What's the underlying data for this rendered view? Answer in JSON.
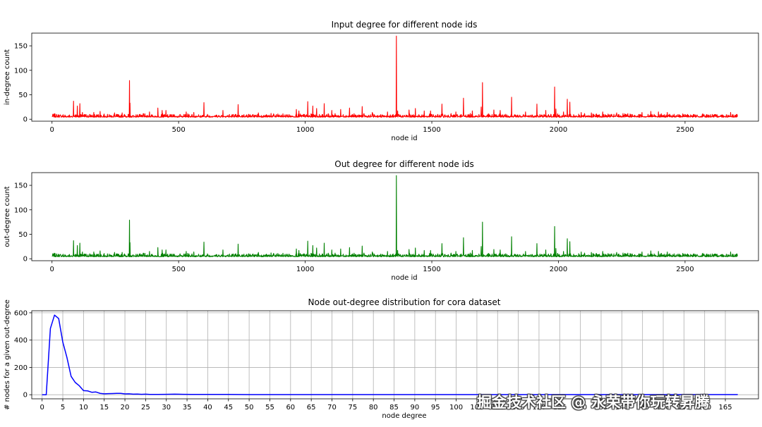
{
  "chart_data": [
    {
      "type": "line",
      "title": "Input degree for different node ids",
      "xlabel": "node id",
      "ylabel": "in-degree count",
      "xlim": [
        -80,
        2790
      ],
      "ylim": [
        -4,
        176
      ],
      "xticks": [
        0,
        500,
        1000,
        1500,
        2000,
        2500
      ],
      "yticks": [
        0,
        50,
        100,
        150
      ],
      "grid": false,
      "color": "#ff0000",
      "baseline_value": 4,
      "n_points": 2708,
      "spikes": [
        {
          "x": 85,
          "y": 37
        },
        {
          "x": 100,
          "y": 27
        },
        {
          "x": 110,
          "y": 32
        },
        {
          "x": 120,
          "y": 14
        },
        {
          "x": 165,
          "y": 14
        },
        {
          "x": 190,
          "y": 16
        },
        {
          "x": 247,
          "y": 13
        },
        {
          "x": 277,
          "y": 13
        },
        {
          "x": 306,
          "y": 79
        },
        {
          "x": 308,
          "y": 33
        },
        {
          "x": 385,
          "y": 15
        },
        {
          "x": 418,
          "y": 23
        },
        {
          "x": 435,
          "y": 18
        },
        {
          "x": 450,
          "y": 18
        },
        {
          "x": 530,
          "y": 15
        },
        {
          "x": 560,
          "y": 14
        },
        {
          "x": 600,
          "y": 34
        },
        {
          "x": 675,
          "y": 18
        },
        {
          "x": 735,
          "y": 30
        },
        {
          "x": 815,
          "y": 13
        },
        {
          "x": 865,
          "y": 12
        },
        {
          "x": 965,
          "y": 20
        },
        {
          "x": 975,
          "y": 17
        },
        {
          "x": 1010,
          "y": 36
        },
        {
          "x": 1030,
          "y": 27
        },
        {
          "x": 1045,
          "y": 22
        },
        {
          "x": 1075,
          "y": 32
        },
        {
          "x": 1105,
          "y": 18
        },
        {
          "x": 1140,
          "y": 20
        },
        {
          "x": 1175,
          "y": 23
        },
        {
          "x": 1225,
          "y": 26
        },
        {
          "x": 1265,
          "y": 14
        },
        {
          "x": 1325,
          "y": 15
        },
        {
          "x": 1360,
          "y": 170
        },
        {
          "x": 1365,
          "y": 17
        },
        {
          "x": 1410,
          "y": 19
        },
        {
          "x": 1435,
          "y": 22
        },
        {
          "x": 1470,
          "y": 17
        },
        {
          "x": 1495,
          "y": 17
        },
        {
          "x": 1540,
          "y": 31
        },
        {
          "x": 1595,
          "y": 15
        },
        {
          "x": 1625,
          "y": 43
        },
        {
          "x": 1660,
          "y": 17
        },
        {
          "x": 1695,
          "y": 25
        },
        {
          "x": 1700,
          "y": 75
        },
        {
          "x": 1745,
          "y": 19
        },
        {
          "x": 1770,
          "y": 18
        },
        {
          "x": 1815,
          "y": 45
        },
        {
          "x": 1870,
          "y": 15
        },
        {
          "x": 1915,
          "y": 31
        },
        {
          "x": 1950,
          "y": 18
        },
        {
          "x": 1985,
          "y": 66
        },
        {
          "x": 1990,
          "y": 21
        },
        {
          "x": 2020,
          "y": 15
        },
        {
          "x": 2035,
          "y": 41
        },
        {
          "x": 2045,
          "y": 35
        },
        {
          "x": 2090,
          "y": 14
        },
        {
          "x": 2130,
          "y": 13
        },
        {
          "x": 2175,
          "y": 15
        },
        {
          "x": 2230,
          "y": 13
        },
        {
          "x": 2330,
          "y": 14
        },
        {
          "x": 2365,
          "y": 16
        },
        {
          "x": 2395,
          "y": 15
        },
        {
          "x": 2430,
          "y": 14
        },
        {
          "x": 2680,
          "y": 14
        }
      ]
    },
    {
      "type": "line",
      "title": "Out degree for different node ids",
      "xlabel": "node id",
      "ylabel": "out-degree count",
      "xlim": [
        -80,
        2790
      ],
      "ylim": [
        -4,
        176
      ],
      "xticks": [
        0,
        500,
        1000,
        1500,
        2000,
        2500
      ],
      "yticks": [
        0,
        50,
        100,
        150
      ],
      "grid": false,
      "color": "#008000",
      "baseline_value": 4,
      "n_points": 2708,
      "spikes": [
        {
          "x": 85,
          "y": 37
        },
        {
          "x": 100,
          "y": 27
        },
        {
          "x": 110,
          "y": 32
        },
        {
          "x": 120,
          "y": 14
        },
        {
          "x": 165,
          "y": 14
        },
        {
          "x": 190,
          "y": 16
        },
        {
          "x": 247,
          "y": 13
        },
        {
          "x": 277,
          "y": 13
        },
        {
          "x": 306,
          "y": 79
        },
        {
          "x": 308,
          "y": 33
        },
        {
          "x": 385,
          "y": 15
        },
        {
          "x": 418,
          "y": 23
        },
        {
          "x": 435,
          "y": 18
        },
        {
          "x": 450,
          "y": 18
        },
        {
          "x": 530,
          "y": 15
        },
        {
          "x": 560,
          "y": 14
        },
        {
          "x": 600,
          "y": 34
        },
        {
          "x": 675,
          "y": 18
        },
        {
          "x": 735,
          "y": 30
        },
        {
          "x": 815,
          "y": 13
        },
        {
          "x": 865,
          "y": 12
        },
        {
          "x": 965,
          "y": 20
        },
        {
          "x": 975,
          "y": 17
        },
        {
          "x": 1010,
          "y": 36
        },
        {
          "x": 1030,
          "y": 27
        },
        {
          "x": 1045,
          "y": 22
        },
        {
          "x": 1075,
          "y": 32
        },
        {
          "x": 1105,
          "y": 18
        },
        {
          "x": 1140,
          "y": 20
        },
        {
          "x": 1175,
          "y": 23
        },
        {
          "x": 1225,
          "y": 26
        },
        {
          "x": 1265,
          "y": 14
        },
        {
          "x": 1325,
          "y": 15
        },
        {
          "x": 1360,
          "y": 170
        },
        {
          "x": 1365,
          "y": 17
        },
        {
          "x": 1410,
          "y": 19
        },
        {
          "x": 1435,
          "y": 22
        },
        {
          "x": 1470,
          "y": 17
        },
        {
          "x": 1495,
          "y": 17
        },
        {
          "x": 1540,
          "y": 31
        },
        {
          "x": 1595,
          "y": 15
        },
        {
          "x": 1625,
          "y": 43
        },
        {
          "x": 1660,
          "y": 17
        },
        {
          "x": 1695,
          "y": 25
        },
        {
          "x": 1700,
          "y": 75
        },
        {
          "x": 1745,
          "y": 19
        },
        {
          "x": 1770,
          "y": 18
        },
        {
          "x": 1815,
          "y": 45
        },
        {
          "x": 1870,
          "y": 15
        },
        {
          "x": 1915,
          "y": 31
        },
        {
          "x": 1950,
          "y": 18
        },
        {
          "x": 1985,
          "y": 66
        },
        {
          "x": 1990,
          "y": 21
        },
        {
          "x": 2020,
          "y": 15
        },
        {
          "x": 2035,
          "y": 41
        },
        {
          "x": 2045,
          "y": 35
        },
        {
          "x": 2090,
          "y": 14
        },
        {
          "x": 2130,
          "y": 13
        },
        {
          "x": 2175,
          "y": 15
        },
        {
          "x": 2230,
          "y": 13
        },
        {
          "x": 2330,
          "y": 14
        },
        {
          "x": 2365,
          "y": 16
        },
        {
          "x": 2395,
          "y": 15
        },
        {
          "x": 2430,
          "y": 14
        },
        {
          "x": 2680,
          "y": 14
        }
      ]
    },
    {
      "type": "line",
      "title": "Node out-degree distribution for cora dataset",
      "xlabel": "node degree",
      "ylabel": "# nodes for a given out-degree",
      "xlim": [
        -2.5,
        173
      ],
      "ylim": [
        -30,
        615
      ],
      "xticks": [
        0,
        5,
        10,
        15,
        20,
        25,
        30,
        35,
        40,
        45,
        50,
        55,
        60,
        65,
        70,
        75,
        80,
        85,
        90,
        95,
        100,
        105,
        110,
        115,
        120,
        125,
        130,
        135,
        140,
        145,
        150,
        155,
        160,
        165
      ],
      "yticks": [
        0,
        200,
        400,
        600
      ],
      "grid": true,
      "color": "#0000ff",
      "x": [
        0,
        1,
        2,
        3,
        4,
        5,
        6,
        7,
        8,
        9,
        10,
        11,
        12,
        13,
        14,
        15,
        16,
        17,
        18,
        19,
        20,
        21,
        22,
        23,
        24,
        25,
        26,
        28,
        30,
        32,
        34,
        36,
        40,
        45,
        50,
        60,
        70,
        80,
        90,
        100,
        110,
        120,
        130,
        140,
        150,
        160,
        168
      ],
      "y": [
        0,
        0,
        485,
        583,
        558,
        385,
        272,
        135,
        90,
        65,
        30,
        28,
        18,
        20,
        10,
        7,
        8,
        9,
        10,
        10,
        6,
        7,
        4,
        5,
        3,
        4,
        2,
        2,
        3,
        4,
        3,
        2,
        2,
        2,
        1,
        1,
        1,
        1,
        1,
        1,
        1,
        1,
        1,
        1,
        1,
        1,
        1
      ]
    }
  ],
  "watermark": "掘金技术社区 @ 永荣带你玩转昇腾"
}
